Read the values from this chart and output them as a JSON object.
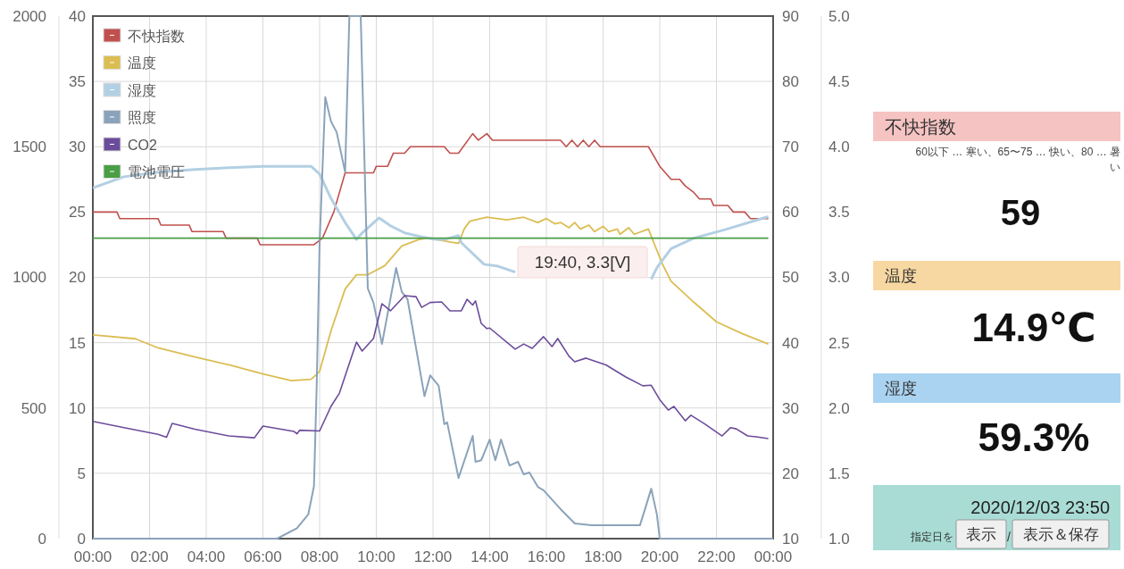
{
  "chart_data": [
    {
      "type": "line",
      "xlim": [
        0,
        24
      ],
      "xticks": [
        {
          "value": 0,
          "label": "00:00"
        },
        {
          "value": 2,
          "label": "02:00"
        },
        {
          "value": 4,
          "label": "04:00"
        },
        {
          "value": 6,
          "label": "06:00"
        },
        {
          "value": 8,
          "label": "08:00"
        },
        {
          "value": 10,
          "label": "10:00"
        },
        {
          "value": 12,
          "label": "12:00"
        },
        {
          "value": 14,
          "label": "14:00"
        },
        {
          "value": 16,
          "label": "16:00"
        },
        {
          "value": 18,
          "label": "18:00"
        },
        {
          "value": 20,
          "label": "20:00"
        },
        {
          "value": 22,
          "label": "22:00"
        },
        {
          "value": 24,
          "label": "00:00"
        }
      ],
      "ylim": [
        0,
        40
      ],
      "yticks": [
        0,
        5,
        10,
        15,
        20,
        25,
        30,
        35,
        40
      ],
      "y2lim": [
        10,
        90
      ],
      "y2ticks": [
        10,
        20,
        30,
        40,
        50,
        60,
        70,
        80,
        90
      ],
      "y3lim": [
        0,
        2000
      ],
      "y3ticks": [
        0,
        500,
        1000,
        1500,
        2000
      ],
      "grid": true,
      "legend": "top left",
      "series": [
        {
          "name": "不快指数",
          "color": "#c0504d",
          "axis": "y2",
          "x": [
            0,
            0.85,
            0.95,
            2.3,
            2.4,
            3.4,
            3.5,
            4.6,
            4.7,
            5.8,
            5.9,
            7.8,
            8.1,
            8.5,
            8.9,
            9.9,
            10,
            10.4,
            10.6,
            11,
            11.2,
            12.4,
            12.6,
            12.9,
            13.4,
            13.6,
            13.9,
            14.1,
            16.5,
            16.7,
            16.9,
            17.1,
            17.3,
            17.5,
            17.7,
            17.9,
            19.6,
            20,
            20.4,
            20.7,
            20.9,
            21.2,
            21.4,
            21.8,
            21.9,
            22.4,
            22.6,
            23,
            23.2,
            23.83
          ],
          "values": [
            60,
            60,
            59,
            59,
            58,
            58,
            57,
            57,
            56,
            56,
            55,
            55,
            56,
            60,
            66,
            66,
            67,
            67,
            69,
            69,
            70,
            70,
            69,
            69,
            72,
            71,
            72,
            71,
            71,
            70,
            71,
            70,
            71,
            70,
            71,
            70,
            70,
            67,
            65,
            65,
            64,
            63,
            62,
            62,
            61,
            61,
            60,
            60,
            59,
            59
          ]
        },
        {
          "name": "温度",
          "color": "#dbbd52",
          "axis": "y",
          "x": [
            0,
            1.5,
            2.3,
            3.6,
            4.8,
            6,
            7,
            7.7,
            8,
            8.4,
            8.9,
            9.3,
            9.7,
            10.3,
            10.9,
            11.5,
            11.8,
            12.1,
            12.9,
            13.1,
            13.3,
            13.9,
            14.6,
            15.2,
            15.7,
            16,
            16.3,
            16.5,
            16.8,
            17,
            17.2,
            17.5,
            17.7,
            18,
            18.2,
            18.5,
            18.6,
            18.9,
            19.1,
            19.6,
            19.8,
            20.1,
            20.4,
            21.2,
            22,
            22.9,
            23.83
          ],
          "values": [
            15.6,
            15.3,
            14.6,
            13.9,
            13.3,
            12.6,
            12.1,
            12.2,
            12.8,
            15.9,
            19.1,
            20.2,
            20.2,
            20.9,
            22.4,
            22.9,
            23,
            22.9,
            22.6,
            23.7,
            24.3,
            24.6,
            24.4,
            24.6,
            24.2,
            24.5,
            24.1,
            24.2,
            23.8,
            24.2,
            23.7,
            24,
            23.5,
            23.9,
            23.5,
            23.7,
            23.3,
            23.8,
            23.3,
            23.7,
            22.6,
            21,
            19.7,
            18.1,
            16.6,
            15.7,
            14.9
          ]
        },
        {
          "name": "湿度",
          "color": "#b3cfe3",
          "axis": "y2",
          "x": [
            0,
            1.1,
            2.3,
            3.6,
            4.8,
            6,
            7.7,
            8,
            8.4,
            8.9,
            9.3,
            9.5,
            10.1,
            10.5,
            11,
            11.6,
            12.1,
            12.4,
            12.9,
            13,
            13.8,
            14.3,
            14.9,
            15.2,
            19.6,
            19.7,
            19.9,
            20.4,
            21.2,
            22.3,
            23.83
          ],
          "values": [
            63.7,
            65.4,
            66.1,
            66.5,
            66.8,
            67,
            67,
            65.8,
            62.1,
            58.4,
            55.8,
            56.8,
            59.1,
            57.9,
            56.8,
            56.2,
            55.8,
            55.8,
            56.4,
            55.3,
            52,
            51.7,
            50.8,
            null,
            null,
            49.7,
            51.5,
            54.4,
            56,
            57.3,
            59.3
          ]
        },
        {
          "name": "照度",
          "color": "#8ba3ba",
          "axis": "y3",
          "x": [
            0,
            6.5,
            7.2,
            7.6,
            7.8,
            7.9,
            8,
            8.2,
            8.4,
            8.6,
            8.9,
            9.05,
            9.45,
            9.7,
            9.9,
            10.2,
            10.7,
            10.9,
            11.1,
            11.7,
            11.9,
            12.2,
            12.4,
            12.5,
            12.9,
            13.4,
            13.5,
            13.7,
            14,
            14.2,
            14.4,
            14.7,
            15,
            15.2,
            15.4,
            15.7,
            15.9,
            16.5,
            17,
            17.6,
            19.3,
            19.5,
            19.7,
            19.9,
            20,
            24
          ],
          "values": [
            0,
            0,
            40,
            93,
            200,
            598,
            1130,
            1690,
            1597,
            1556,
            1403,
            2000,
            2000,
            958,
            903,
            745,
            1036,
            944,
            917,
            545,
            625,
            585,
            438,
            445,
            232,
            393,
            294,
            300,
            379,
            300,
            379,
            280,
            294,
            246,
            253,
            198,
            185,
            113,
            58,
            51,
            51,
            120,
            191,
            92,
            0,
            0
          ]
        },
        {
          "name": "CO2",
          "color": "#6b4c9a",
          "axis": "y3",
          "x": [
            0,
            1.1,
            2.3,
            2.6,
            2.8,
            3.6,
            4.8,
            5.7,
            6,
            7.1,
            7.2,
            7.3,
            8,
            8.4,
            8.7,
            9.3,
            9.5,
            9.9,
            10.2,
            10.5,
            11,
            11.4,
            11.6,
            11.9,
            12.3,
            12.6,
            13,
            13.2,
            13.4,
            13.5,
            13.7,
            13.9,
            14,
            14.9,
            15.2,
            15.5,
            15.9,
            16.2,
            16.4,
            16.8,
            17,
            17.4,
            18.1,
            18.8,
            19.4,
            19.7,
            20,
            20.3,
            20.5,
            20.9,
            21.1,
            21.6,
            22.2,
            22.5,
            22.7,
            23.1,
            23.4,
            23.83
          ],
          "values": [
            449,
            425,
            399,
            388,
            441,
            419,
            393,
            386,
            431,
            410,
            401,
            415,
            412,
            506,
            557,
            752,
            718,
            766,
            899,
            872,
            930,
            926,
            885,
            904,
            906,
            872,
            872,
            916,
            894,
            910,
            824,
            804,
            806,
            725,
            745,
            728,
            773,
            735,
            766,
            698,
            677,
            691,
            665,
            619,
            585,
            587,
            532,
            492,
            506,
            451,
            472,
            438,
            393,
            425,
            420,
            393,
            390,
            383
          ]
        }
      ],
      "annotations": [
        "19:40, 3.3[V]"
      ]
    },
    {
      "type": "line",
      "xlim": [
        0,
        24
      ],
      "ylim": [
        1,
        5
      ],
      "yticks": [
        {
          "value": 1,
          "label": "1.0"
        },
        {
          "value": 1.5,
          "label": "1.5"
        },
        {
          "value": 2,
          "label": "2.0"
        },
        {
          "value": 2.5,
          "label": "2.5"
        },
        {
          "value": 3,
          "label": "3.0"
        },
        {
          "value": 3.5,
          "label": "3.5"
        },
        {
          "value": 4,
          "label": "4.0"
        },
        {
          "value": 4.5,
          "label": "4.5"
        },
        {
          "value": 5,
          "label": "5.0"
        }
      ],
      "tick_labels": "y",
      "legend": "top left",
      "series": [
        {
          "name": "電池電圧",
          "color": "#4a9e45",
          "x": [
            0,
            6,
            12,
            18,
            23.83
          ],
          "values": [
            3.3,
            3.3,
            3.3,
            3.3,
            3.3
          ]
        }
      ]
    },
    {
      "type": "other",
      "categories": [
        "不快指数",
        "温度",
        "湿度"
      ],
      "colors": [
        "#f6c3c3",
        "#f8d8a2",
        "#a9d3f1",
        "#a8dcd5"
      ],
      "value_labels": [
        "59",
        "14.9℃",
        "59.3%"
      ],
      "annotations": [
        "60以下 … 寒い、65〜75 … 快い、80 … 暑い",
        "2020/12/03 23:50",
        "指定日を",
        "表示",
        "/",
        "表示＆保存"
      ]
    }
  ]
}
